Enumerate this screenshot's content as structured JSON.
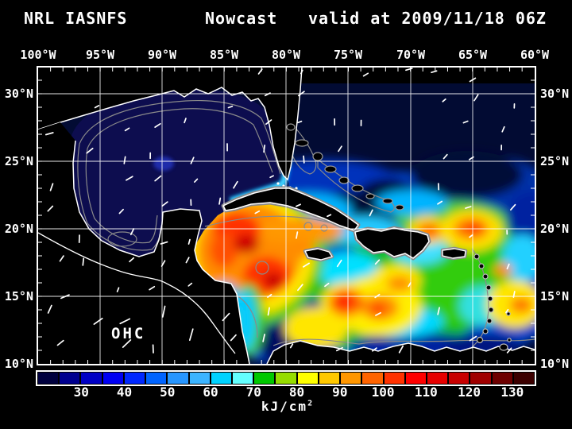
{
  "title": {
    "model": "NRL IASNFS",
    "product": "Nowcast",
    "valid": "valid at 2009/11/18 06Z"
  },
  "map": {
    "overlay_label": "OHC",
    "lon_labels": [
      "100°W",
      "95°W",
      "90°W",
      "85°W",
      "80°W",
      "75°W",
      "70°W",
      "65°W",
      "60°W"
    ],
    "lat_labels": [
      "30°N",
      "25°N",
      "20°N",
      "15°N",
      "10°N"
    ],
    "coastline_color": "#ffffff",
    "shelf_contour_color": "#8a8a8a",
    "grid_color": "#ffffff",
    "land_color": "#000000",
    "gulf_fill_color": "#0d0d4f",
    "atlantic_fill_color": "#020b33"
  },
  "colorbar": {
    "tick_labels": [
      "30",
      "40",
      "50",
      "60",
      "70",
      "80",
      "90",
      "100",
      "110",
      "120",
      "130"
    ],
    "unit_base": "kJ/cm",
    "unit_exp": "2",
    "cell_colors": [
      "#00003e",
      "#00008f",
      "#0000c4",
      "#0000f2",
      "#0028ff",
      "#0064ff",
      "#2896ff",
      "#3cb4ff",
      "#00d2ff",
      "#64ffff",
      "#00c800",
      "#96dc00",
      "#ffff00",
      "#ffc800",
      "#ff9600",
      "#ff6400",
      "#ff3200",
      "#ff0000",
      "#e60000",
      "#c80000",
      "#a00000",
      "#6e0000",
      "#3c0000"
    ]
  },
  "chart_data": {
    "type": "heatmap",
    "title": "NRL IASNFS Nowcast valid at 2009/11/18 06Z",
    "variable": "OHC",
    "units": "kJ/cm²",
    "colorbar_ticks": [
      30,
      40,
      50,
      60,
      70,
      80,
      90,
      100,
      110,
      120,
      130
    ],
    "scale_min": 25,
    "scale_max": 140,
    "scale_step_per_cell": 5,
    "lon_range_deg_w": [
      100,
      60
    ],
    "lat_range_deg_n": [
      10,
      30
    ],
    "grid_spacing_deg": 5,
    "legend_position": "bottom"
  }
}
